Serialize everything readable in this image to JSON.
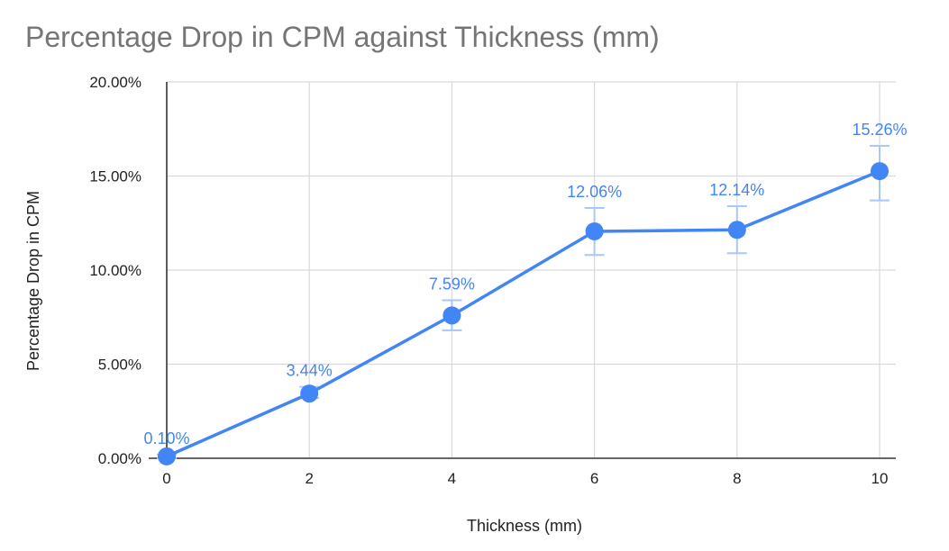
{
  "chart_data": {
    "type": "line",
    "title": "Percentage Drop in CPM against Thickness (mm)",
    "xlabel": "Thickness (mm)",
    "ylabel": "Percentage Drop in CPM",
    "x": [
      0,
      2,
      4,
      6,
      8,
      10
    ],
    "series": [
      {
        "values": [
          0.1,
          3.44,
          7.59,
          12.06,
          12.14,
          15.26
        ],
        "labels": [
          "0.10%",
          "3.44%",
          "7.59%",
          "12.06%",
          "12.14%",
          "15.26%"
        ],
        "error_low": [
          0.0,
          3.2,
          6.8,
          10.8,
          10.9,
          13.7
        ],
        "error_high": [
          0.2,
          3.8,
          8.4,
          13.3,
          13.4,
          16.6
        ]
      }
    ],
    "xticks": [
      "0",
      "2",
      "4",
      "6",
      "8",
      "10"
    ],
    "yticks": [
      {
        "value": 0,
        "label": "0.00%"
      },
      {
        "value": 5,
        "label": "5.00%"
      },
      {
        "value": 10,
        "label": "10.00%"
      },
      {
        "value": 15,
        "label": "15.00%"
      },
      {
        "value": 20,
        "label": "20.00%"
      }
    ],
    "xlim": [
      0,
      10
    ],
    "ylim": [
      0,
      20
    ],
    "grid": true,
    "colors": {
      "line": "#4285f4",
      "error_bar": "#a8c7fa",
      "grid": "#d9d9d9",
      "axis": "#333333"
    }
  }
}
